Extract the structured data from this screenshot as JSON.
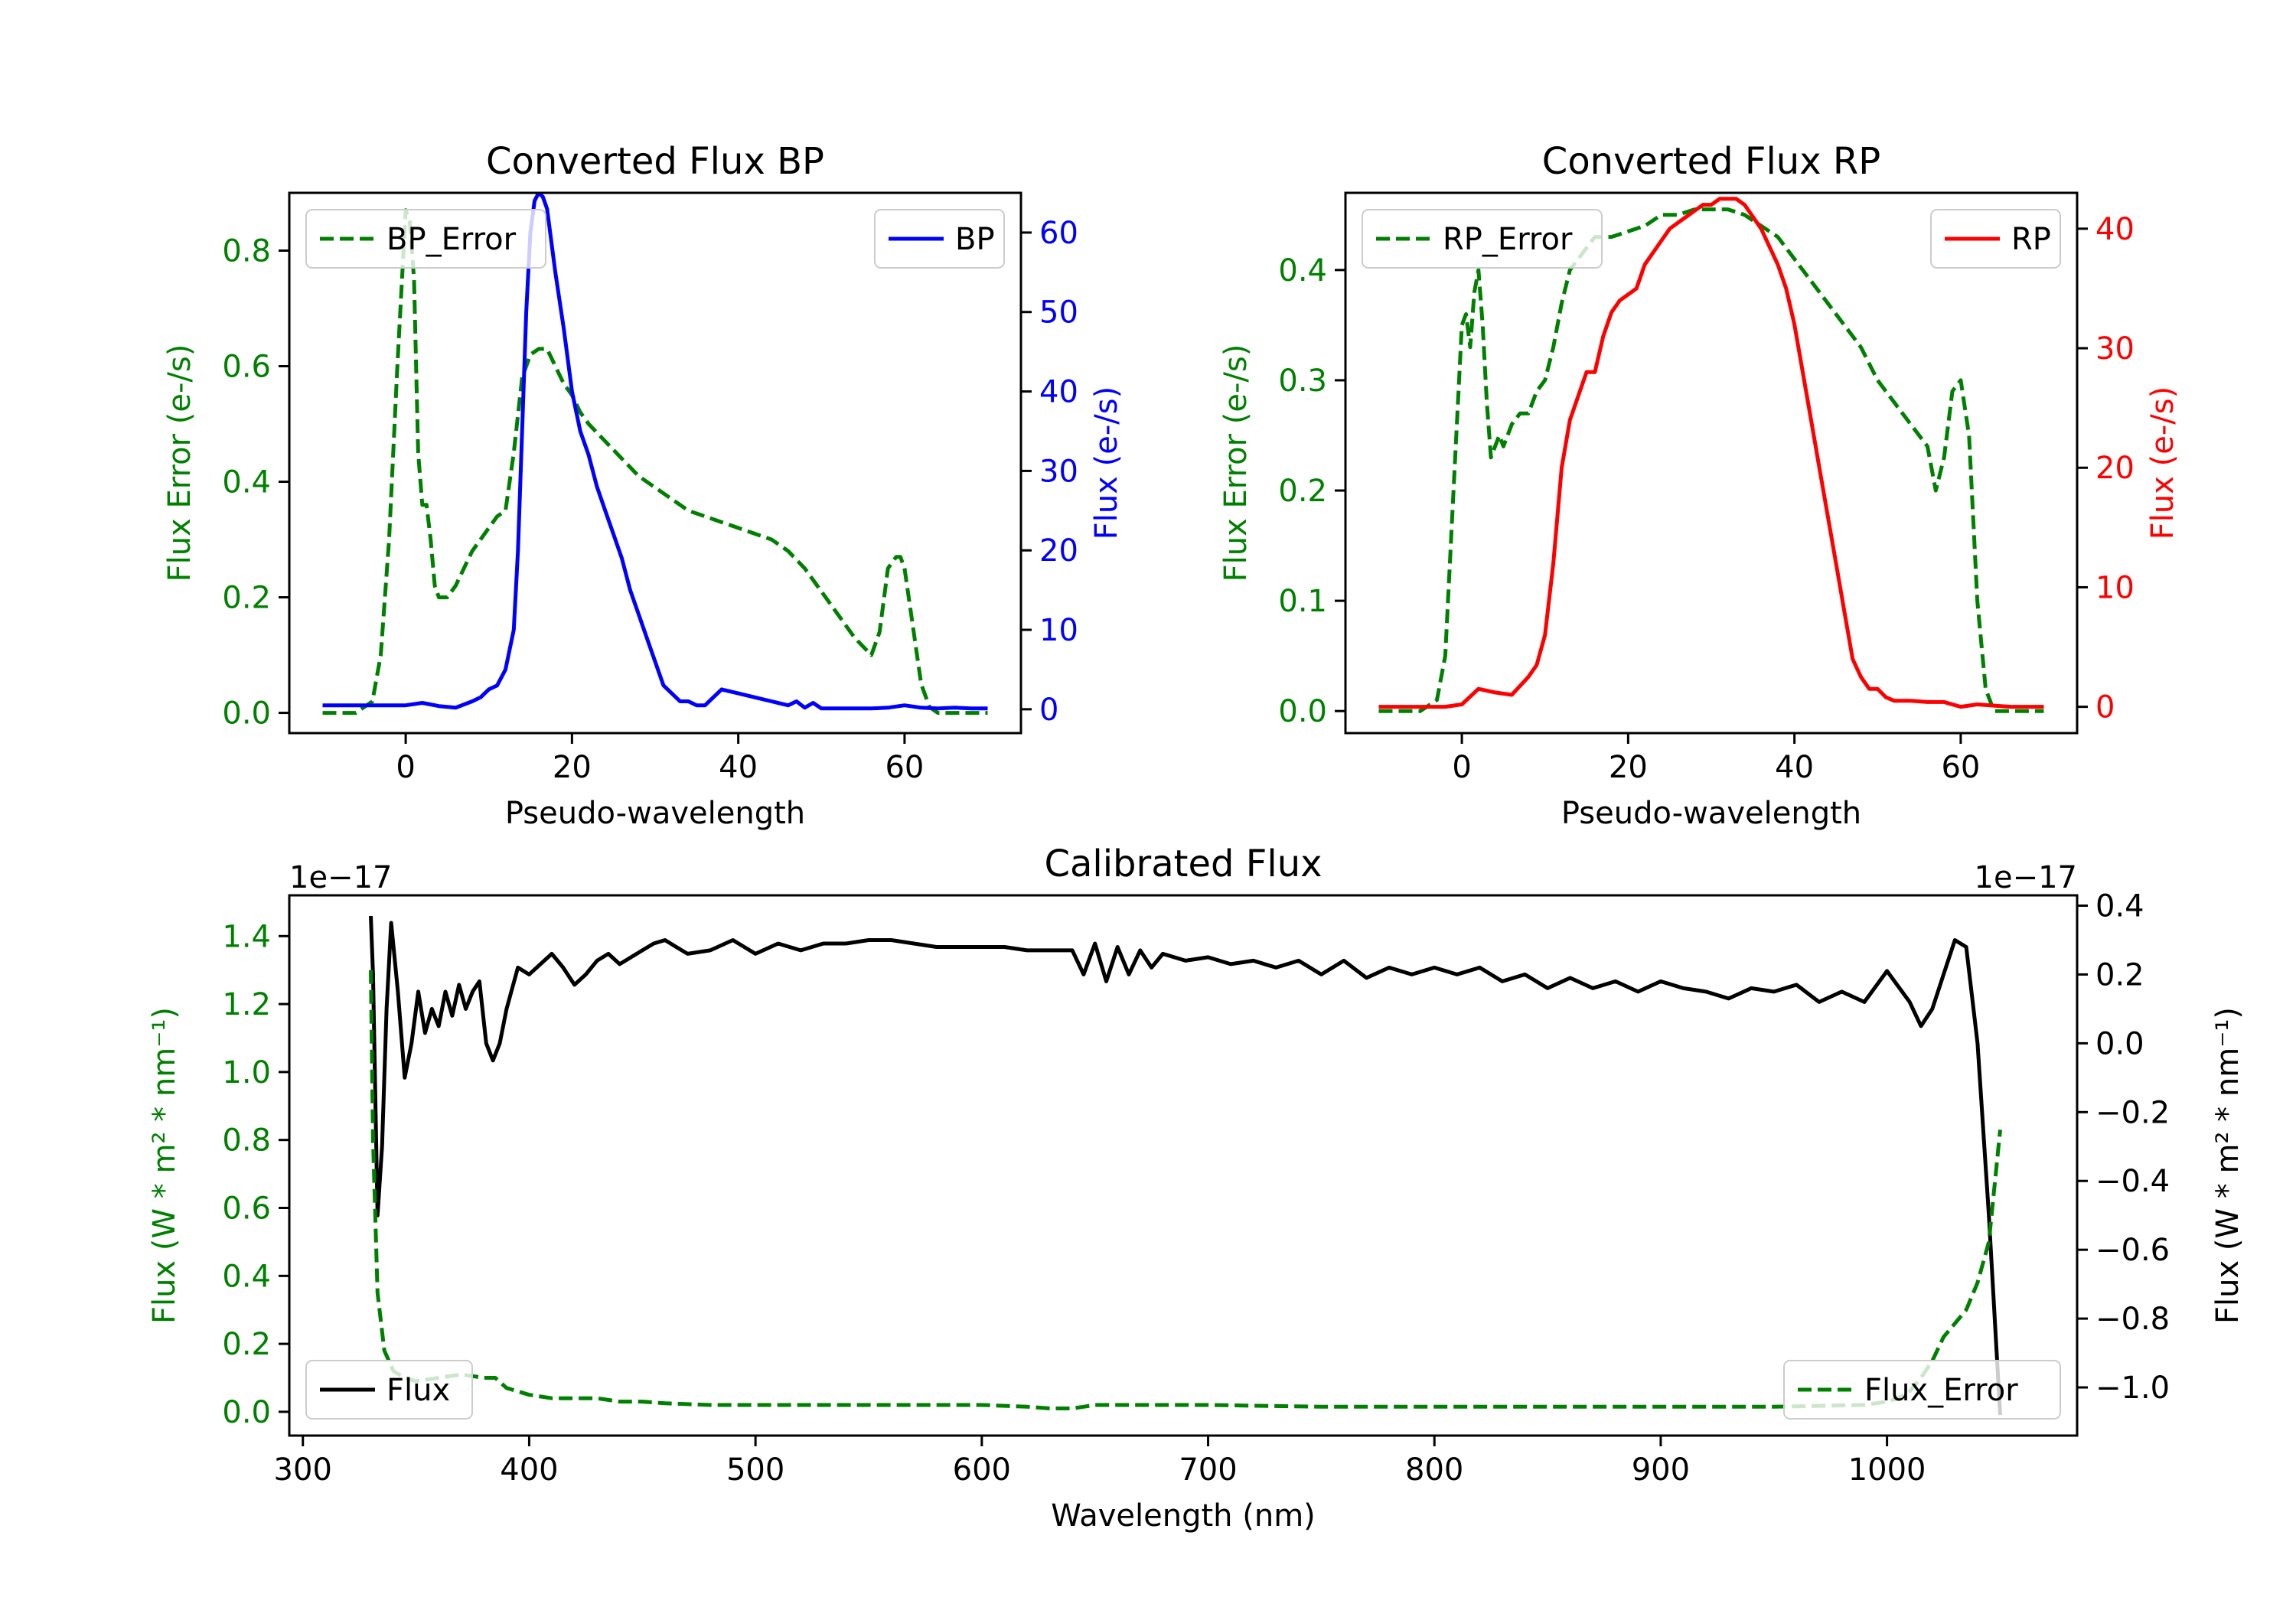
{
  "chart_data": [
    {
      "type": "line",
      "title": "Converted Flux BP",
      "xlabel": "Pseudo-wavelength",
      "ylabel_left": "Flux Error (e-/s)",
      "ylabel_right": "Flux (e-/s)",
      "xlim": [
        -14,
        74
      ],
      "xticks": [
        0,
        20,
        40,
        60
      ],
      "ylim_left": [
        -0.035,
        0.9
      ],
      "yticks_left": [
        0.0,
        0.2,
        0.4,
        0.6,
        0.8
      ],
      "ylim_right": [
        -3,
        65
      ],
      "yticks_right": [
        0,
        10,
        20,
        30,
        40,
        50,
        60
      ],
      "legend_left": {
        "label": "BP_Error",
        "placement": "upper-left"
      },
      "legend_right": {
        "label": "BP",
        "placement": "upper-right"
      },
      "colors": {
        "error": "#008000",
        "flux": "#0000ff",
        "left_axis": "#008000",
        "right_axis": "#0000ff"
      },
      "series": [
        {
          "name": "BP_Error",
          "axis": "left",
          "style": "dashed",
          "x": [
            -10,
            -6,
            -4,
            -3,
            -2,
            -1,
            0,
            0.5,
            1,
            1.5,
            2,
            2.5,
            3,
            3.5,
            4,
            5,
            6,
            7,
            8,
            9,
            10,
            11,
            12,
            13,
            14,
            15,
            16,
            17,
            18,
            19,
            20,
            21,
            22,
            24,
            26,
            28,
            30,
            32,
            34,
            36,
            38,
            40,
            42,
            44,
            46,
            48,
            50,
            52,
            54,
            56,
            57,
            58,
            59,
            59.5,
            60,
            61,
            62,
            63,
            64,
            65,
            66,
            68,
            70
          ],
          "y": [
            0.0,
            0.0,
            0.02,
            0.1,
            0.3,
            0.6,
            0.87,
            0.85,
            0.75,
            0.45,
            0.36,
            0.36,
            0.3,
            0.22,
            0.2,
            0.2,
            0.22,
            0.25,
            0.28,
            0.3,
            0.32,
            0.34,
            0.35,
            0.45,
            0.58,
            0.62,
            0.63,
            0.63,
            0.6,
            0.57,
            0.55,
            0.52,
            0.5,
            0.47,
            0.44,
            0.41,
            0.39,
            0.37,
            0.35,
            0.34,
            0.33,
            0.32,
            0.31,
            0.3,
            0.28,
            0.25,
            0.21,
            0.17,
            0.13,
            0.1,
            0.14,
            0.25,
            0.27,
            0.27,
            0.25,
            0.15,
            0.05,
            0.01,
            0.0,
            0.0,
            0.0,
            0.0,
            0.0
          ]
        },
        {
          "name": "BP",
          "axis": "right",
          "style": "solid",
          "x": [
            -10,
            -5,
            0,
            2,
            4,
            6,
            8,
            9,
            10,
            11,
            12,
            13,
            13.5,
            14,
            14.5,
            15,
            15.5,
            16,
            16.5,
            17,
            18,
            19,
            20,
            21,
            22,
            23,
            24,
            25,
            26,
            27,
            28,
            29,
            30,
            31,
            32,
            33,
            34,
            35,
            36,
            37,
            38,
            40,
            42,
            44,
            46,
            47,
            48,
            49,
            50,
            52,
            54,
            56,
            58,
            60,
            62,
            64,
            66,
            68,
            70
          ],
          "y": [
            0.5,
            0.5,
            0.5,
            0.8,
            0.4,
            0.2,
            1.0,
            1.5,
            2.5,
            3.0,
            5.0,
            10.0,
            20.0,
            35.0,
            50.0,
            60.0,
            64.0,
            65.0,
            64.5,
            63.0,
            55.0,
            48.0,
            40.0,
            35.0,
            32.0,
            28.0,
            25.0,
            22.0,
            19.0,
            15.0,
            12.0,
            9.0,
            6.0,
            3.0,
            2.0,
            1.0,
            1.0,
            0.5,
            0.5,
            1.5,
            2.5,
            2.0,
            1.5,
            1.0,
            0.5,
            1.0,
            0.2,
            0.8,
            0.1,
            0.1,
            0.1,
            0.1,
            0.2,
            0.5,
            0.2,
            0.1,
            0.2,
            0.1,
            0.1
          ]
        }
      ]
    },
    {
      "type": "line",
      "title": "Converted Flux RP",
      "xlabel": "Pseudo-wavelength",
      "ylabel_left": "Flux Error (e-/s)",
      "ylabel_right": "Flux (e-/s)",
      "xlim": [
        -14,
        74
      ],
      "xticks": [
        0,
        20,
        40,
        60
      ],
      "ylim_left": [
        -0.02,
        0.47
      ],
      "yticks_left": [
        0.0,
        0.1,
        0.2,
        0.3,
        0.4
      ],
      "ylim_right": [
        -2.2,
        43
      ],
      "yticks_right": [
        0,
        10,
        20,
        30,
        40
      ],
      "legend_left": {
        "label": "RP_Error",
        "placement": "upper-left"
      },
      "legend_right": {
        "label": "RP",
        "placement": "upper-right"
      },
      "colors": {
        "error": "#008000",
        "flux": "#ff0000",
        "left_axis": "#008000",
        "right_axis": "#ff0000"
      },
      "series": [
        {
          "name": "RP_Error",
          "axis": "left",
          "style": "dashed",
          "x": [
            -10,
            -5,
            -3,
            -2,
            -1,
            0,
            0.5,
            1,
            1.5,
            2,
            2.5,
            3,
            3.5,
            4,
            4.5,
            5,
            6,
            7,
            8,
            9,
            10,
            11,
            12,
            13,
            14,
            15,
            16,
            18,
            20,
            22,
            24,
            26,
            28,
            30,
            32,
            34,
            36,
            38,
            40,
            42,
            44,
            46,
            48,
            50,
            52,
            54,
            55,
            56,
            57,
            58,
            59,
            60,
            61,
            62,
            63,
            64,
            66,
            68,
            70
          ],
          "y": [
            0.0,
            0.0,
            0.01,
            0.05,
            0.2,
            0.35,
            0.36,
            0.33,
            0.38,
            0.4,
            0.35,
            0.28,
            0.23,
            0.24,
            0.25,
            0.24,
            0.26,
            0.27,
            0.27,
            0.29,
            0.3,
            0.33,
            0.37,
            0.4,
            0.41,
            0.42,
            0.43,
            0.43,
            0.435,
            0.44,
            0.45,
            0.45,
            0.455,
            0.455,
            0.455,
            0.45,
            0.44,
            0.43,
            0.41,
            0.39,
            0.37,
            0.35,
            0.33,
            0.3,
            0.28,
            0.26,
            0.25,
            0.24,
            0.2,
            0.23,
            0.29,
            0.3,
            0.25,
            0.1,
            0.02,
            0.0,
            0.0,
            0.0,
            0.0
          ]
        },
        {
          "name": "RP",
          "axis": "right",
          "style": "solid",
          "x": [
            -10,
            -5,
            -2,
            0,
            2,
            4,
            6,
            8,
            9,
            10,
            11,
            12,
            13,
            14,
            15,
            16,
            17,
            18,
            19,
            20,
            21,
            22,
            23,
            24,
            25,
            26,
            27,
            28,
            29,
            30,
            31,
            32,
            33,
            34,
            35,
            36,
            37,
            38,
            39,
            40,
            41,
            42,
            43,
            44,
            45,
            46,
            47,
            48,
            49,
            50,
            51,
            52,
            53,
            54,
            56,
            58,
            60,
            62,
            64,
            66,
            68,
            70
          ],
          "y": [
            0.0,
            0.0,
            0.0,
            0.2,
            1.5,
            1.2,
            1.0,
            2.5,
            3.5,
            6.0,
            12.0,
            20.0,
            24.0,
            26.0,
            28.0,
            28.0,
            31.0,
            33.0,
            34.0,
            34.5,
            35.0,
            37.0,
            38.0,
            39.0,
            40.0,
            40.5,
            41.0,
            41.5,
            42.0,
            42.0,
            42.5,
            42.5,
            42.5,
            42.0,
            41.0,
            40.0,
            38.5,
            37.0,
            35.0,
            32.0,
            28.0,
            24.0,
            20.0,
            16.0,
            12.0,
            8.0,
            4.0,
            2.5,
            1.5,
            1.5,
            0.8,
            0.5,
            0.5,
            0.5,
            0.4,
            0.4,
            0.0,
            0.2,
            0.1,
            0.0,
            0.0,
            0.0
          ]
        }
      ]
    },
    {
      "type": "line",
      "title": "Calibrated Flux",
      "xlabel": "Wavelength (nm)",
      "ylabel_left": "Flux (W * m² * nm⁻¹)",
      "ylabel_right": "Flux (W * m² * nm⁻¹)",
      "offset_left": "1e−17",
      "offset_right": "1e−17",
      "xlim": [
        294,
        1084
      ],
      "xticks": [
        300,
        400,
        500,
        600,
        700,
        800,
        900,
        1000
      ],
      "ylim_left": [
        -0.07,
        1.52
      ],
      "yticks_left": [
        0.0,
        0.2,
        0.4,
        0.6,
        0.8,
        1.0,
        1.2,
        1.4
      ],
      "ylim_right": [
        -1.14,
        0.43
      ],
      "yticks_right": [
        -1.0,
        -0.8,
        -0.6,
        -0.4,
        -0.2,
        0.0,
        0.2,
        0.4
      ],
      "legend_left": {
        "label": "Flux",
        "placement": "lower-left"
      },
      "legend_right": {
        "label": "Flux_Error",
        "placement": "lower-right"
      },
      "colors": {
        "error": "#008000",
        "flux": "#000000",
        "left_axis": "#008000",
        "right_axis": "#000000"
      },
      "series": [
        {
          "name": "Flux",
          "axis": "right",
          "style": "solid",
          "x": [
            330,
            331,
            333,
            335,
            337,
            339,
            342,
            345,
            348,
            351,
            354,
            357,
            360,
            363,
            366,
            369,
            372,
            375,
            378,
            381,
            384,
            387,
            390,
            395,
            400,
            405,
            410,
            415,
            420,
            425,
            430,
            435,
            440,
            445,
            450,
            455,
            460,
            465,
            470,
            480,
            490,
            500,
            510,
            520,
            530,
            540,
            550,
            560,
            570,
            580,
            590,
            600,
            610,
            620,
            630,
            640,
            645,
            650,
            655,
            660,
            665,
            670,
            675,
            680,
            690,
            700,
            710,
            720,
            730,
            740,
            750,
            760,
            770,
            780,
            790,
            800,
            810,
            820,
            830,
            840,
            850,
            860,
            870,
            880,
            890,
            900,
            910,
            920,
            930,
            940,
            950,
            960,
            970,
            980,
            990,
            1000,
            1010,
            1015,
            1020,
            1025,
            1030,
            1035,
            1040,
            1045,
            1050
          ],
          "y": [
            0.37,
            0.2,
            -0.5,
            -0.3,
            0.1,
            0.35,
            0.15,
            -0.1,
            0.0,
            0.15,
            0.03,
            0.1,
            0.05,
            0.15,
            0.08,
            0.17,
            0.1,
            0.15,
            0.18,
            0.0,
            -0.05,
            0.0,
            0.1,
            0.22,
            0.2,
            0.23,
            0.26,
            0.22,
            0.17,
            0.2,
            0.24,
            0.26,
            0.23,
            0.25,
            0.27,
            0.29,
            0.3,
            0.28,
            0.26,
            0.27,
            0.3,
            0.26,
            0.29,
            0.27,
            0.29,
            0.29,
            0.3,
            0.3,
            0.29,
            0.28,
            0.28,
            0.28,
            0.28,
            0.27,
            0.27,
            0.27,
            0.2,
            0.29,
            0.18,
            0.28,
            0.2,
            0.27,
            0.22,
            0.26,
            0.24,
            0.25,
            0.23,
            0.24,
            0.22,
            0.24,
            0.2,
            0.24,
            0.19,
            0.22,
            0.2,
            0.22,
            0.2,
            0.22,
            0.18,
            0.2,
            0.16,
            0.19,
            0.16,
            0.18,
            0.15,
            0.18,
            0.16,
            0.15,
            0.13,
            0.16,
            0.15,
            0.17,
            0.12,
            0.15,
            0.12,
            0.21,
            0.12,
            0.05,
            0.1,
            0.2,
            0.3,
            0.28,
            0.0,
            -0.5,
            -1.08
          ]
        },
        {
          "name": "Flux_Error",
          "axis": "left",
          "style": "dashed",
          "x": [
            330,
            331,
            333,
            336,
            340,
            345,
            350,
            360,
            370,
            380,
            385,
            390,
            400,
            410,
            420,
            430,
            440,
            450,
            460,
            480,
            500,
            520,
            550,
            580,
            600,
            620,
            630,
            640,
            645,
            650,
            660,
            680,
            700,
            750,
            800,
            850,
            900,
            950,
            990,
            1000,
            1005,
            1010,
            1015,
            1020,
            1025,
            1030,
            1035,
            1040,
            1045,
            1050
          ],
          "y": [
            1.3,
            0.8,
            0.35,
            0.18,
            0.12,
            0.1,
            0.09,
            0.1,
            0.11,
            0.1,
            0.1,
            0.07,
            0.05,
            0.04,
            0.04,
            0.04,
            0.03,
            0.03,
            0.025,
            0.02,
            0.02,
            0.02,
            0.02,
            0.02,
            0.02,
            0.015,
            0.01,
            0.01,
            0.015,
            0.02,
            0.02,
            0.02,
            0.02,
            0.015,
            0.015,
            0.015,
            0.015,
            0.015,
            0.02,
            0.03,
            0.04,
            0.06,
            0.1,
            0.15,
            0.22,
            0.26,
            0.3,
            0.38,
            0.5,
            0.83
          ]
        }
      ]
    }
  ]
}
